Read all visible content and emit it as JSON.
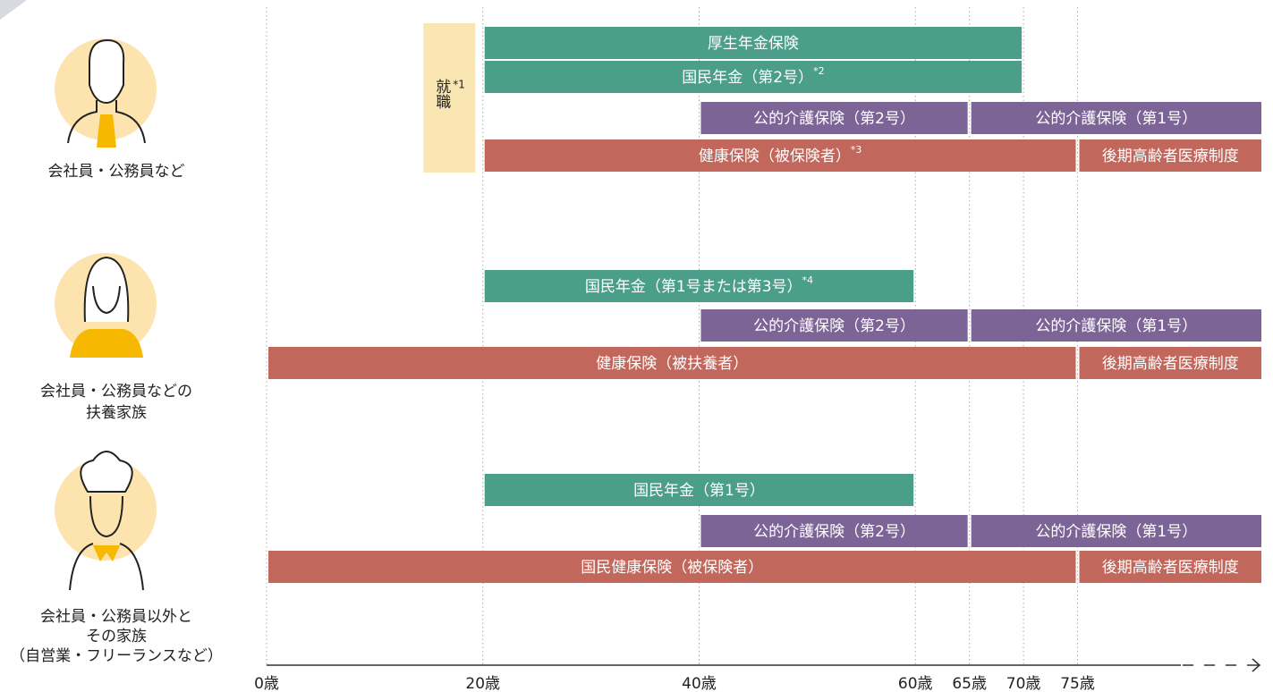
{
  "chart_data": {
    "type": "gantt",
    "xlim": [
      0,
      92
    ],
    "xticks": [
      {
        "value": 0,
        "label": "0歳"
      },
      {
        "value": 20,
        "label": "20歳"
      },
      {
        "value": 40,
        "label": "40歳"
      },
      {
        "value": 60,
        "label": "60歳"
      },
      {
        "value": 65,
        "label": "65歳"
      },
      {
        "value": 70,
        "label": "70歳"
      },
      {
        "value": 75,
        "label": "75歳"
      }
    ],
    "grid": true,
    "colors": {
      "pension": "#4a9e8a",
      "care": "#7d6497",
      "health": "#c2675c",
      "employment": "#f9e6b3"
    },
    "employment": {
      "label": "就職",
      "note": "*1",
      "start": 14.5,
      "end": 19.3
    },
    "groups": [
      {
        "name": [
          "会社員・公務員など"
        ],
        "rows": [
          [
            {
              "label": "厚生年金保険",
              "kind": "pension",
              "start": 20,
              "end": 70
            }
          ],
          [
            {
              "label": "国民年金（第2号）",
              "note": "*2",
              "kind": "pension",
              "start": 20,
              "end": 70
            }
          ],
          [
            {
              "label": "公的介護保険（第2号）",
              "kind": "care",
              "start": 40,
              "end": 65
            },
            {
              "label": "公的介護保険（第1号）",
              "kind": "care",
              "start": 65,
              "end": null
            }
          ],
          [
            {
              "label": "健康保険（被保険者）",
              "note": "*3",
              "kind": "health",
              "start": 20,
              "end": 75
            },
            {
              "label": "後期高齢者医療制度",
              "kind": "health",
              "start": 75,
              "end": null
            }
          ]
        ]
      },
      {
        "name": [
          "会社員・公務員などの",
          "扶養家族"
        ],
        "rows": [
          [
            {
              "label": "国民年金（第1号または第3号）",
              "note": "*4",
              "kind": "pension",
              "start": 20,
              "end": 60
            }
          ],
          [
            {
              "label": "公的介護保険（第2号）",
              "kind": "care",
              "start": 40,
              "end": 65
            },
            {
              "label": "公的介護保険（第1号）",
              "kind": "care",
              "start": 65,
              "end": null
            }
          ],
          [
            {
              "label": "健康保険（被扶養者）",
              "kind": "health",
              "start": 0,
              "end": 75
            },
            {
              "label": "後期高齢者医療制度",
              "kind": "health",
              "start": 75,
              "end": null
            }
          ]
        ]
      },
      {
        "name": [
          "会社員・公務員以外と",
          "その家族",
          "（自営業・フリーランスなど）"
        ],
        "rows": [
          [
            {
              "label": "国民年金（第1号）",
              "kind": "pension",
              "start": 20,
              "end": 60
            }
          ],
          [
            {
              "label": "公的介護保険（第2号）",
              "kind": "care",
              "start": 40,
              "end": 65
            },
            {
              "label": "公的介護保険（第1号）",
              "kind": "care",
              "start": 65,
              "end": null
            }
          ],
          [
            {
              "label": "国民健康保険（被保険者）",
              "kind": "health",
              "start": 0,
              "end": 75
            },
            {
              "label": "後期高齢者医療制度",
              "kind": "health",
              "start": 75,
              "end": null
            }
          ]
        ]
      }
    ]
  }
}
